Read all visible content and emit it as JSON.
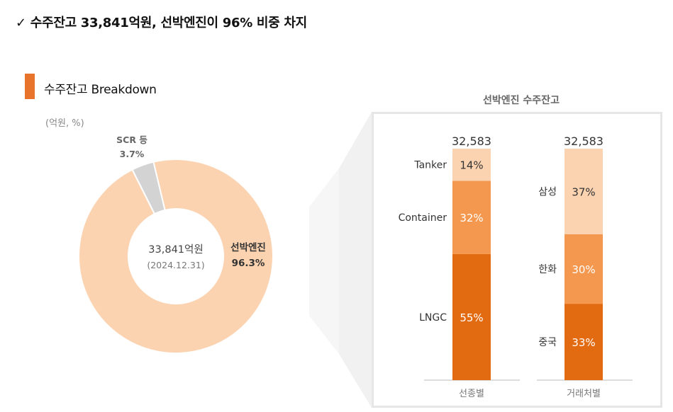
{
  "headline": {
    "check": "✓",
    "text": "수주잔고 33,841억원, 선박엔진이 96% 비중 차지"
  },
  "section": {
    "title": "수주잔고 Breakdown",
    "unit": "(억원, %)"
  },
  "colors": {
    "accent": "#E8732A",
    "peach": "#FBD3B1",
    "mid_orange": "#F5984F",
    "dark_orange": "#E26A11",
    "gray": "#D3D3D3"
  },
  "chart_data": [
    {
      "type": "pie",
      "variant": "donut",
      "center_value": "33,841억원",
      "center_date": "(2024.12.31)",
      "slices": [
        {
          "label": "선박엔진",
          "value_label": "96.3%",
          "value": 96.3,
          "color": "#FBD3B1"
        },
        {
          "label": "SCR 등",
          "value_label": "3.7%",
          "value": 3.7,
          "color": "#D3D3D3"
        }
      ]
    },
    {
      "type": "bar",
      "variant": "stacked-100",
      "title": "선박엔진 수주잔고",
      "categories": [
        "선종별",
        "거래처별"
      ],
      "totals": [
        "32,583",
        "32,583"
      ],
      "stacks": [
        [
          {
            "name": "LNGC",
            "value": 55,
            "label": "55%",
            "color": "#E26A11"
          },
          {
            "name": "Container",
            "value": 32,
            "label": "32%",
            "color": "#F5984F"
          },
          {
            "name": "Tanker",
            "value": 14,
            "label": "14%",
            "color": "#FBD3B1"
          }
        ],
        [
          {
            "name": "중국",
            "value": 33,
            "label": "33%",
            "color": "#E26A11"
          },
          {
            "name": "한화",
            "value": 30,
            "label": "30%",
            "color": "#F5984F"
          },
          {
            "name": "삼성",
            "value": 37,
            "label": "37%",
            "color": "#FBD3B1"
          }
        ]
      ]
    }
  ]
}
